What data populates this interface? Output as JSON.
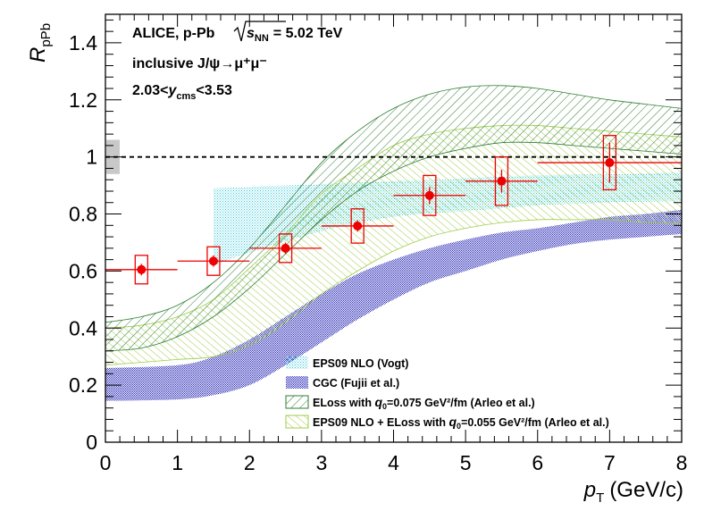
{
  "chart_data": {
    "type": "scatter",
    "x_axis": {
      "label": "p",
      "label_sub": "T",
      "label_units": "(GeV/c)",
      "range": [
        0,
        8
      ],
      "ticks": [
        "0",
        "1",
        "2",
        "3",
        "4",
        "5",
        "6",
        "7",
        "8"
      ]
    },
    "y_axis": {
      "label": "R",
      "label_sub": "pPb",
      "range": [
        0,
        1.5
      ],
      "ticks": [
        "0",
        "0.2",
        "0.4",
        "0.6",
        "0.8",
        "1",
        "1.2",
        "1.4"
      ]
    },
    "annotations": {
      "line1": "ALICE, p-Pb",
      "energy_prefix": "s",
      "energy_sub": "NN",
      "energy_value": "= 5.02 TeV",
      "line2": "inclusive J/ψ→μ⁺μ⁻",
      "line3_a": "2.03<",
      "line3_y": "y",
      "line3_sub": "cms",
      "line3_b": "<3.53"
    },
    "reference_line": 1.0,
    "global_uncertainty": [
      0.94,
      1.06
    ],
    "data": {
      "x": [
        0.5,
        1.5,
        2.5,
        3.5,
        4.5,
        5.5,
        7.0
      ],
      "x_err": [
        0.5,
        0.5,
        0.5,
        0.5,
        0.5,
        0.5,
        1.0
      ],
      "y": [
        0.605,
        0.635,
        0.68,
        0.758,
        0.865,
        0.915,
        0.98
      ],
      "stat_err": [
        0.02,
        0.02,
        0.02,
        0.02,
        0.03,
        0.04,
        0.07
      ],
      "sys_err": [
        0.05,
        0.05,
        0.05,
        0.06,
        0.07,
        0.085,
        0.095
      ],
      "color": "#ee0000"
    },
    "bands": [
      {
        "name": "EPS09 NLO (Vogt)",
        "color": "#33c8d8",
        "x": [
          1.5,
          2,
          3,
          4,
          5,
          6,
          7,
          8
        ],
        "upper": [
          0.89,
          0.895,
          0.905,
          0.915,
          0.925,
          0.935,
          0.94,
          0.945
        ],
        "lower": [
          0.62,
          0.665,
          0.74,
          0.79,
          0.81,
          0.83,
          0.84,
          0.845
        ]
      },
      {
        "name": "CGC (Fujii et al.)",
        "color": "#2a2aa8",
        "x": [
          0,
          1,
          1.5,
          2,
          2.5,
          3,
          3.5,
          4,
          4.5,
          5,
          5.5,
          6,
          6.5,
          7,
          7.5,
          8
        ],
        "upper": [
          0.26,
          0.27,
          0.3,
          0.36,
          0.44,
          0.52,
          0.59,
          0.64,
          0.68,
          0.71,
          0.735,
          0.75,
          0.77,
          0.79,
          0.8,
          0.815
        ],
        "lower": [
          0.145,
          0.15,
          0.165,
          0.2,
          0.27,
          0.35,
          0.43,
          0.5,
          0.56,
          0.6,
          0.64,
          0.67,
          0.695,
          0.71,
          0.72,
          0.73
        ]
      },
      {
        "name_prefix": "ELoss with ",
        "name_q": "q",
        "name_q_sub": "0",
        "name_suffix": "=0.075 GeV²/fm (Arleo et al.)",
        "color": "#2e7d32",
        "x": [
          0,
          0.5,
          1,
          1.5,
          2,
          2.5,
          3,
          3.5,
          4,
          4.5,
          5,
          5.5,
          6,
          6.5,
          7,
          7.5,
          8
        ],
        "upper": [
          0.42,
          0.44,
          0.48,
          0.56,
          0.68,
          0.83,
          0.98,
          1.09,
          1.17,
          1.22,
          1.245,
          1.25,
          1.24,
          1.22,
          1.2,
          1.185,
          1.17
        ],
        "lower": [
          0.32,
          0.33,
          0.37,
          0.44,
          0.54,
          0.66,
          0.78,
          0.88,
          0.95,
          1.0,
          1.03,
          1.05,
          1.05,
          1.04,
          1.03,
          1.02,
          1.01
        ]
      },
      {
        "name_prefix": "EPS09 NLO + ELoss with ",
        "name_q": "q",
        "name_q_sub": "0",
        "name_suffix": "=0.055 GeV²/fm (Arleo et al.)",
        "color": "#9ccc45",
        "x": [
          0,
          0.5,
          1,
          1.5,
          2,
          2.5,
          3,
          3.5,
          4,
          4.5,
          5,
          5.5,
          6,
          6.5,
          7,
          7.5,
          8
        ],
        "upper": [
          0.4,
          0.41,
          0.44,
          0.5,
          0.61,
          0.73,
          0.87,
          0.96,
          1.04,
          1.08,
          1.1,
          1.11,
          1.11,
          1.1,
          1.09,
          1.08,
          1.07
        ],
        "lower": [
          0.27,
          0.28,
          0.29,
          0.3,
          0.34,
          0.42,
          0.52,
          0.6,
          0.67,
          0.72,
          0.75,
          0.77,
          0.78,
          0.78,
          0.78,
          0.77,
          0.765
        ]
      }
    ]
  }
}
